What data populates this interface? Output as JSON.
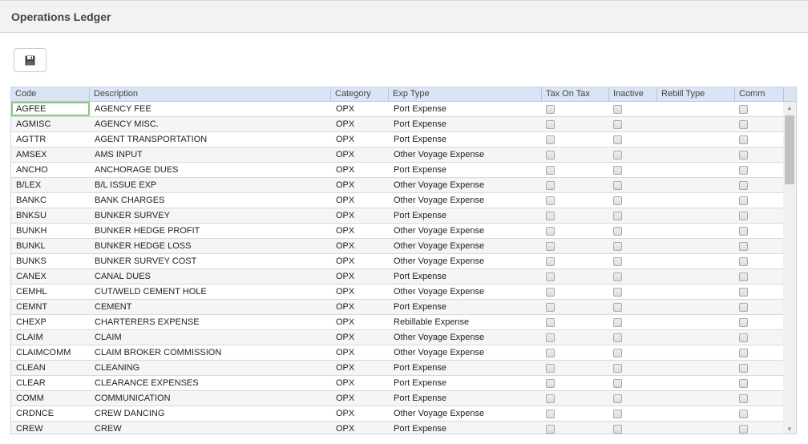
{
  "header": {
    "title": "Operations Ledger"
  },
  "toolbar": {
    "save_icon": "floppy-disk-icon"
  },
  "table": {
    "columns": [
      "Code",
      "Description",
      "Category",
      "Exp Type",
      "Tax On Tax",
      "Inactive",
      "Rebill Type",
      "Comm"
    ],
    "rows": [
      [
        "AGFEE",
        "AGENCY FEE",
        "OPX",
        "Port Expense"
      ],
      [
        "AGMISC",
        "AGENCY MISC.",
        "OPX",
        "Port Expense"
      ],
      [
        "AGTTR",
        "AGENT TRANSPORTATION",
        "OPX",
        "Port Expense"
      ],
      [
        "AMSEX",
        "AMS INPUT",
        "OPX",
        "Other Voyage Expense"
      ],
      [
        "ANCHO",
        "ANCHORAGE DUES",
        "OPX",
        "Port Expense"
      ],
      [
        "B/LEX",
        "B/L ISSUE EXP",
        "OPX",
        "Other Voyage Expense"
      ],
      [
        "BANKC",
        "BANK CHARGES",
        "OPX",
        "Other Voyage Expense"
      ],
      [
        "BNKSU",
        "BUNKER SURVEY",
        "OPX",
        "Port Expense"
      ],
      [
        "BUNKH",
        "BUNKER HEDGE PROFIT",
        "OPX",
        "Other Voyage Expense"
      ],
      [
        "BUNKL",
        "BUNKER HEDGE LOSS",
        "OPX",
        "Other Voyage Expense"
      ],
      [
        "BUNKS",
        "BUNKER SURVEY COST",
        "OPX",
        "Other Voyage Expense"
      ],
      [
        "CANEX",
        "CANAL DUES",
        "OPX",
        "Port Expense"
      ],
      [
        "CEMHL",
        "CUT/WELD CEMENT HOLE",
        "OPX",
        "Other Voyage Expense"
      ],
      [
        "CEMNT",
        "CEMENT",
        "OPX",
        "Port Expense"
      ],
      [
        "CHEXP",
        "CHARTERERS EXPENSE",
        "OPX",
        "Rebillable Expense"
      ],
      [
        "CLAIM",
        "CLAIM",
        "OPX",
        "Other Voyage Expense"
      ],
      [
        "CLAIMCOMM",
        "CLAIM BROKER COMMISSION",
        "OPX",
        "Other Voyage Expense"
      ],
      [
        "CLEAN",
        "CLEANING",
        "OPX",
        "Port Expense"
      ],
      [
        "CLEAR",
        "CLEARANCE EXPENSES",
        "OPX",
        "Port Expense"
      ],
      [
        "COMM",
        "COMMUNICATION",
        "OPX",
        "Port Expense"
      ],
      [
        "CRDNCE",
        "CREW DANCING",
        "OPX",
        "Other Voyage Expense"
      ],
      [
        "CREW",
        "CREW",
        "OPX",
        "Port Expense"
      ]
    ]
  }
}
